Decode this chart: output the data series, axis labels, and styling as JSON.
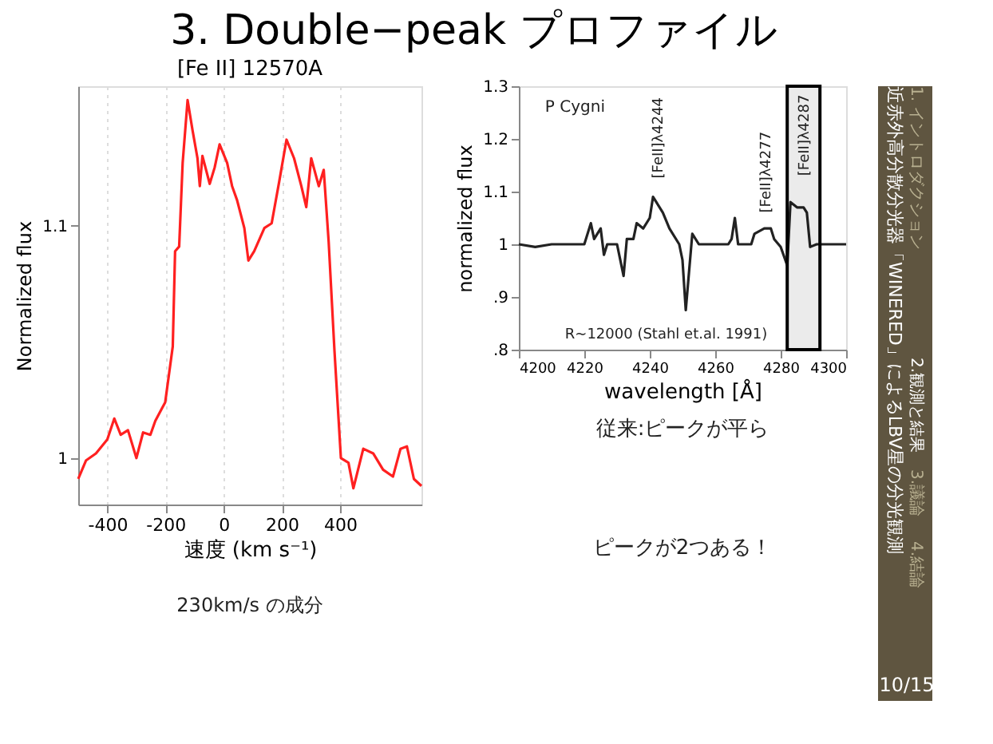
{
  "chart_data": [
    {
      "type": "other",
      "title": "3. Double−peak プロファイル",
      "annotations": [
        "近赤外高分散分光器「WINERED」によるLBV星の分光観測",
        "1. イントロダクション",
        "2.観測と結果",
        "3.議論",
        "4.結論",
        "10/15"
      ]
    },
    {
      "type": "line",
      "title": "[Fe II] 12570A",
      "xlabel": "速度 (km s⁻¹)",
      "ylabel": "Normalized flux",
      "xlim": [
        -500,
        680
      ],
      "ylim": [
        0.98,
        1.16
      ],
      "xticks": [
        -400,
        -200,
        0,
        200,
        400
      ],
      "yticks": [
        1,
        1.1
      ],
      "grid": "x",
      "marker": "none",
      "line_style": "solid",
      "x": [
        -500,
        -473,
        -439,
        -400,
        -376,
        -354,
        -329,
        -300,
        -277,
        -252,
        -235,
        -201,
        -175,
        -167,
        -153,
        -141,
        -124,
        -107,
        -90,
        -82,
        -73,
        -48,
        -31,
        -14,
        12,
        29,
        46,
        71,
        85,
        105,
        140,
        165,
        191,
        216,
        242,
        267,
        284,
        301,
        327,
        344,
        361,
        381,
        403,
        429,
        446,
        480,
        514,
        548,
        582,
        608,
        630,
        654,
        680
      ],
      "series": [
        {
          "color": "#ff2020",
          "values": [
            0.991,
            0.999,
            1.002,
            1.008,
            1.017,
            1.01,
            1.012,
            1.0,
            1.011,
            1.01,
            1.016,
            1.024,
            1.048,
            1.089,
            1.091,
            1.127,
            1.154,
            1.141,
            1.129,
            1.117,
            1.13,
            1.118,
            1.125,
            1.135,
            1.127,
            1.117,
            1.111,
            1.099,
            1.085,
            1.089,
            1.099,
            1.101,
            1.119,
            1.137,
            1.129,
            1.117,
            1.108,
            1.129,
            1.117,
            1.124,
            1.093,
            1.046,
            1.0,
            0.998,
            0.987,
            1.004,
            1.002,
            0.995,
            0.992,
            1.004,
            1.005,
            0.991,
            0.988
          ]
        }
      ],
      "annotations": [
        "230km/s の成分"
      ]
    },
    {
      "type": "line",
      "xlabel": "wavelength [Å]",
      "ylabel": "normalized flux",
      "xlim": [
        4200,
        4300
      ],
      "ylim": [
        0.8,
        1.3
      ],
      "xticks": [
        4200,
        4220,
        4240,
        4260,
        4280,
        4300
      ],
      "yticks": [
        {
          "value": 0.8,
          "label": ".8"
        },
        {
          "value": 0.9,
          "label": ".9"
        },
        1,
        1.1,
        1.2,
        1.3
      ],
      "marker": "none",
      "line_style": "solid",
      "x": [
        4200,
        4205,
        4210,
        4220,
        4222,
        4223,
        4225,
        4226,
        4227,
        4230,
        4232,
        4233,
        4235,
        4236,
        4238,
        4240,
        4241,
        4242,
        4244,
        4246,
        4249,
        4250,
        4251,
        4253,
        4255,
        4264,
        4265,
        4266,
        4267,
        4271,
        4272,
        4275,
        4277,
        4278,
        4280,
        4282,
        4283,
        4285,
        4287,
        4288,
        4289,
        4291,
        4300
      ],
      "series": [
        {
          "color": "#222222",
          "values": [
            1.0,
            0.995,
            1.0,
            1.0,
            1.04,
            1.01,
            1.03,
            0.98,
            1.0,
            1.0,
            0.94,
            1.01,
            1.01,
            1.04,
            1.03,
            1.05,
            1.09,
            1.08,
            1.06,
            1.03,
            1.0,
            0.97,
            0.875,
            1.02,
            1.0,
            1.0,
            1.01,
            1.05,
            1.0,
            1.0,
            1.02,
            1.03,
            1.03,
            1.01,
            0.995,
            0.96,
            1.08,
            1.07,
            1.07,
            1.06,
            0.995,
            1.0,
            1.0
          ]
        }
      ],
      "bands": [
        {
          "axis": "x",
          "from": 4282,
          "to": 4292,
          "color": "#000000"
        }
      ],
      "annotations": [
        "P Cygni",
        "[FeII]λ4244",
        "[FeII]λ4277",
        "[FeII]λ4287",
        "R~12000 (Stahl et.al. 1991)",
        "従来:ピークが平ら",
        "ピークが2つある！"
      ]
    }
  ]
}
